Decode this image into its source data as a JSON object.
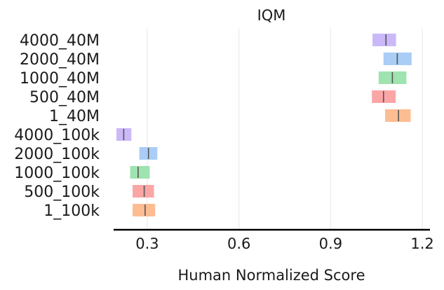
{
  "chart_data": {
    "type": "interval",
    "title": "IQM",
    "xlabel": "Human Normalized Score",
    "ylabel": "",
    "xlim": [
      0.19,
      1.225
    ],
    "xticks": [
      0.3,
      0.6,
      0.9,
      1.2
    ],
    "xtick_labels": [
      "0.3",
      "0.6",
      "0.9",
      "1.2"
    ],
    "grid": "vertical",
    "colors": {
      "purple": "#cbb8f8",
      "blue": "#a9cdf5",
      "green": "#9fe3b0",
      "red": "#fba6a6",
      "orange": "#fdbd93",
      "median_line": "#555555"
    },
    "categories": [
      "4000_40M",
      "2000_40M",
      "1000_40M",
      "500_40M",
      "1_40M",
      "4000_100k",
      "2000_100k",
      "1000_100k",
      "500_100k",
      "1_100k"
    ],
    "series": [
      {
        "category": "4000_40M",
        "color": "purple",
        "low": 1.037,
        "high": 1.114,
        "point": 1.081
      },
      {
        "category": "2000_40M",
        "color": "blue",
        "low": 1.073,
        "high": 1.165,
        "point": 1.118
      },
      {
        "category": "1000_40M",
        "color": "green",
        "low": 1.057,
        "high": 1.148,
        "point": 1.102
      },
      {
        "category": "500_40M",
        "color": "red",
        "low": 1.035,
        "high": 1.113,
        "point": 1.073
      },
      {
        "category": "1_40M",
        "color": "orange",
        "low": 1.078,
        "high": 1.162,
        "point": 1.122
      },
      {
        "category": "4000_100k",
        "color": "purple",
        "low": 0.199,
        "high": 0.248,
        "point": 0.223
      },
      {
        "category": "2000_100k",
        "color": "blue",
        "low": 0.274,
        "high": 0.333,
        "point": 0.304
      },
      {
        "category": "1000_100k",
        "color": "green",
        "low": 0.244,
        "high": 0.308,
        "point": 0.27
      },
      {
        "category": "500_100k",
        "color": "red",
        "low": 0.252,
        "high": 0.322,
        "point": 0.29
      },
      {
        "category": "1_100k",
        "color": "orange",
        "low": 0.252,
        "high": 0.326,
        "point": 0.293
      }
    ]
  }
}
